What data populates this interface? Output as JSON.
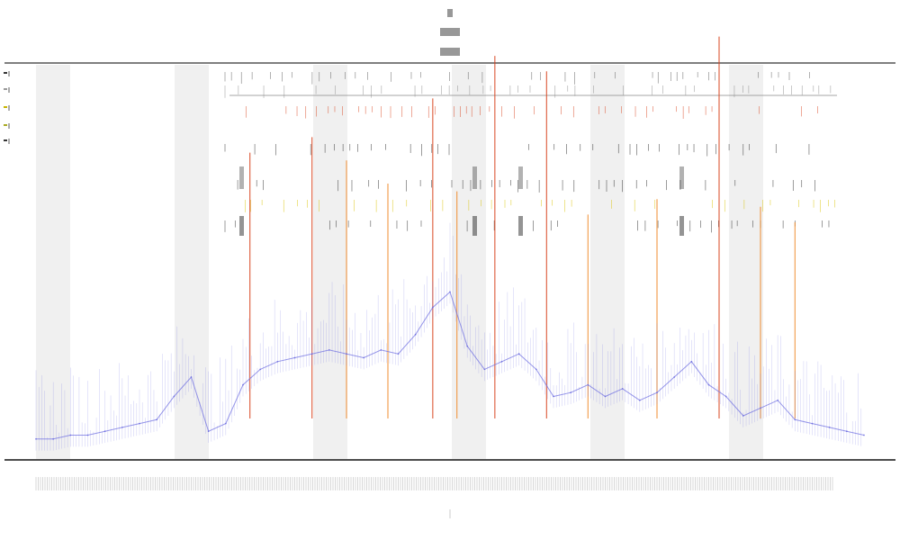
{
  "colors": {
    "background": "#ffffff",
    "band_shade": "#f0f0f0",
    "axis": "#333333",
    "baseline": "#111111",
    "trace": "#6a6ae0",
    "spike_red": "#d8401a",
    "spike_orange": "#f08a2a",
    "spike_yellow": "#d9c200",
    "marker": "#222222"
  },
  "chart_data": {
    "type": "line",
    "title": "",
    "subtitle": "",
    "xlabel": "",
    "ylabel": "",
    "grid": false,
    "legend_position": "top-left",
    "alternating_band_shading": true,
    "xlim": [
      0,
      240
    ],
    "ylim": [
      0,
      100
    ],
    "series": [
      {
        "color": "#6a6ae0",
        "x": [
          0,
          5,
          10,
          15,
          20,
          25,
          30,
          35,
          40,
          45,
          50,
          55,
          60,
          65,
          70,
          75,
          80,
          85,
          90,
          95,
          100,
          105,
          110,
          115,
          120,
          125,
          130,
          135,
          140,
          145,
          150,
          155,
          160,
          165,
          170,
          175,
          180,
          185,
          190,
          195,
          200,
          205,
          210,
          215,
          220,
          225,
          230,
          235,
          240
        ],
        "y": [
          4,
          4,
          5,
          5,
          6,
          7,
          8,
          9,
          15,
          20,
          6,
          8,
          18,
          22,
          24,
          25,
          26,
          27,
          26,
          25,
          27,
          26,
          31,
          38,
          42,
          28,
          22,
          24,
          26,
          22,
          15,
          16,
          18,
          15,
          17,
          14,
          16,
          20,
          24,
          18,
          15,
          10,
          12,
          14,
          9,
          8,
          7,
          6,
          5
        ]
      }
    ],
    "spikes": [
      {
        "x": 62,
        "height": 38,
        "color": "#d8401a"
      },
      {
        "x": 80,
        "height": 42,
        "color": "#d8401a"
      },
      {
        "x": 90,
        "height": 36,
        "color": "#f08a2a"
      },
      {
        "x": 102,
        "height": 30,
        "color": "#f08a2a"
      },
      {
        "x": 115,
        "height": 52,
        "color": "#d8401a"
      },
      {
        "x": 122,
        "height": 28,
        "color": "#f08a2a"
      },
      {
        "x": 133,
        "height": 63,
        "color": "#d8401a"
      },
      {
        "x": 148,
        "height": 59,
        "color": "#d8401a"
      },
      {
        "x": 160,
        "height": 22,
        "color": "#f08a2a"
      },
      {
        "x": 180,
        "height": 26,
        "color": "#f08a2a"
      },
      {
        "x": 198,
        "height": 68,
        "color": "#d8401a"
      },
      {
        "x": 210,
        "height": 24,
        "color": "#f08a2a"
      },
      {
        "x": 220,
        "height": 20,
        "color": "#f08a2a"
      }
    ]
  }
}
